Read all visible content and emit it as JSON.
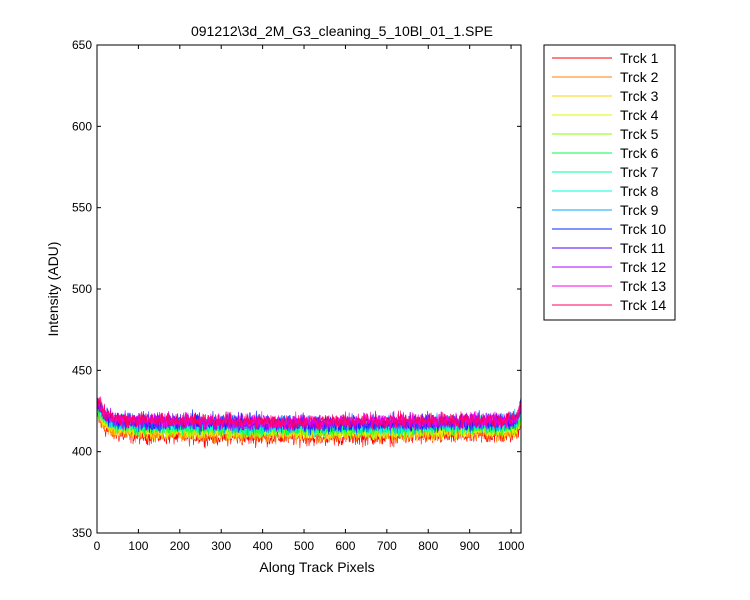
{
  "chart_data": {
    "type": "line",
    "title": "091212\\3d_2M_G3_cleaning_5_10Bl_01_1.SPE",
    "xlabel": "Along Track Pixels",
    "ylabel": "Intensity (ADU)",
    "xlim": [
      0,
      1024
    ],
    "ylim": [
      350,
      650
    ],
    "xticks": [
      0,
      100,
      200,
      300,
      400,
      500,
      600,
      700,
      800,
      900,
      1000
    ],
    "yticks": [
      350,
      400,
      450,
      500,
      550,
      600,
      650
    ],
    "grid": false,
    "legend_position": "outside-right",
    "series": [
      {
        "name": "Trck 1",
        "color": "#ff0000",
        "baseline": 410,
        "noise": 3.5,
        "edge_rise": 12
      },
      {
        "name": "Trck 2",
        "color": "#ff8000",
        "baseline": 412,
        "noise": 3.5,
        "edge_rise": 12
      },
      {
        "name": "Trck 3",
        "color": "#ffd400",
        "baseline": 413,
        "noise": 3.5,
        "edge_rise": 12
      },
      {
        "name": "Trck 4",
        "color": "#d4ff00",
        "baseline": 414,
        "noise": 3.5,
        "edge_rise": 12
      },
      {
        "name": "Trck 5",
        "color": "#80ff00",
        "baseline": 415,
        "noise": 3.5,
        "edge_rise": 12
      },
      {
        "name": "Trck 6",
        "color": "#00ff40",
        "baseline": 416,
        "noise": 3.5,
        "edge_rise": 12
      },
      {
        "name": "Trck 7",
        "color": "#00ff9c",
        "baseline": 417,
        "noise": 3.5,
        "edge_rise": 12
      },
      {
        "name": "Trck 8",
        "color": "#00ffe0",
        "baseline": 417,
        "noise": 3.5,
        "edge_rise": 12
      },
      {
        "name": "Trck 9",
        "color": "#00a8ff",
        "baseline": 418,
        "noise": 4.0,
        "edge_rise": 14
      },
      {
        "name": "Trck 10",
        "color": "#0028ff",
        "baseline": 419,
        "noise": 4.0,
        "edge_rise": 14
      },
      {
        "name": "Trck 11",
        "color": "#5000ff",
        "baseline": 419,
        "noise": 3.5,
        "edge_rise": 12
      },
      {
        "name": "Trck 12",
        "color": "#b000ff",
        "baseline": 419,
        "noise": 3.5,
        "edge_rise": 12
      },
      {
        "name": "Trck 13",
        "color": "#ff00e0",
        "baseline": 420,
        "noise": 3.5,
        "edge_rise": 12
      },
      {
        "name": "Trck 14",
        "color": "#ff0060",
        "baseline": 420,
        "noise": 3.5,
        "edge_rise": 13
      }
    ]
  }
}
